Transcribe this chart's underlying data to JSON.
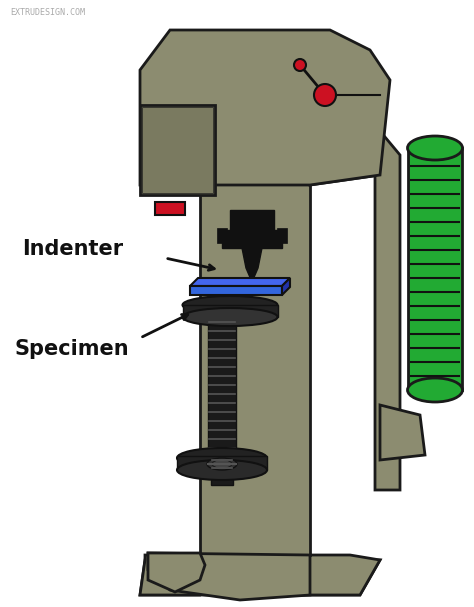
{
  "bg_color": "#ffffff",
  "mc": "#8c8c70",
  "me": "#1a1a1a",
  "blk": "#111111",
  "red": "#cc1122",
  "green": "#22aa33",
  "blue": "#2244cc",
  "blue2": "#3366dd",
  "label_indenter": "Indenter",
  "label_specimen": "Specimen",
  "watermark": "EXTRUDESIGN.COM",
  "font_size_label": 15,
  "font_size_wm": 6
}
